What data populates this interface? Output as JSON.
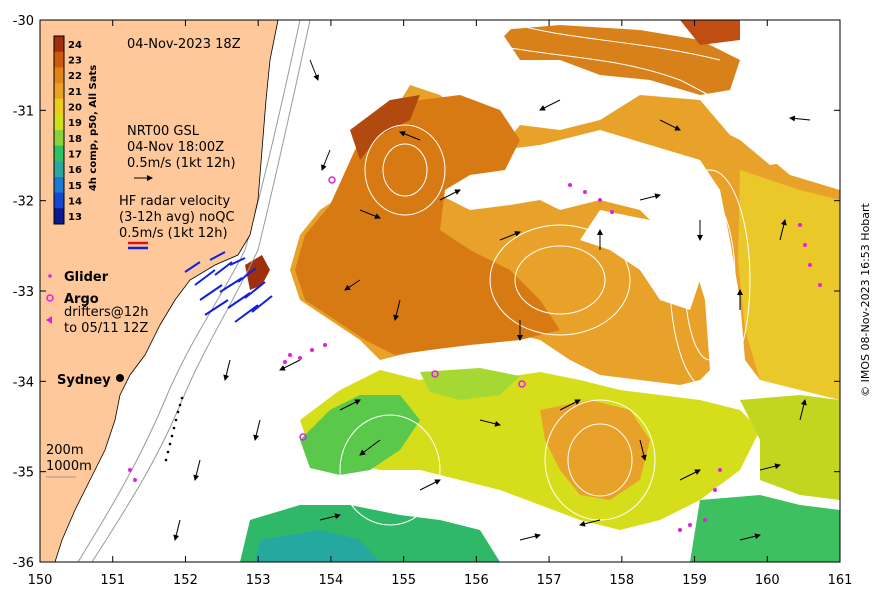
{
  "timestamp": "04-Nov-2023 18Z",
  "colorbar": {
    "title": "4h comp, p50, All Sats",
    "ticks": [
      "24",
      "23",
      "22",
      "21",
      "20",
      "19",
      "18",
      "17",
      "16",
      "15",
      "14",
      "13"
    ],
    "colors": [
      "#a0300c",
      "#cc5a0c",
      "#e08418",
      "#eaa020",
      "#eeca1c",
      "#d0e018",
      "#8ad23a",
      "#2ec064",
      "#2aa8a0",
      "#1c78d0",
      "#1448d0",
      "#0c1890"
    ]
  },
  "legend": {
    "gsl_line1": "NRT00 GSL",
    "gsl_line2": "04-Nov 18:00Z",
    "gsl_scale": "0.5m/s (1kt 12h)",
    "hf_line1": "HF radar velocity",
    "hf_line2": "(3-12h avg) noQC",
    "hf_scale": "0.5m/s (1kt 12h)",
    "glider": "Glider",
    "argo": "Argo",
    "drifters_line1": "drifters@12h",
    "drifters_line2": "to 05/11 12Z",
    "city": "Sydney",
    "depth_200": "200m",
    "depth_1000": "1000m"
  },
  "axes": {
    "x_ticks": [
      "150",
      "151",
      "152",
      "153",
      "154",
      "155",
      "156",
      "157",
      "158",
      "159",
      "160",
      "161"
    ],
    "y_ticks": [
      "-30",
      "-31",
      "-32",
      "-33",
      "-34",
      "-35",
      "-36"
    ],
    "xlim": [
      150,
      161
    ],
    "ylim": [
      -36,
      -30
    ]
  },
  "colors": {
    "land": "#fec89a",
    "argo": "#e020e0",
    "hf_blue": "#1020e0",
    "hf_red": "#e01010",
    "contour": "#ffffff"
  },
  "credit": "© IMOS 08-Nov-2023 16:53 Hobart"
}
